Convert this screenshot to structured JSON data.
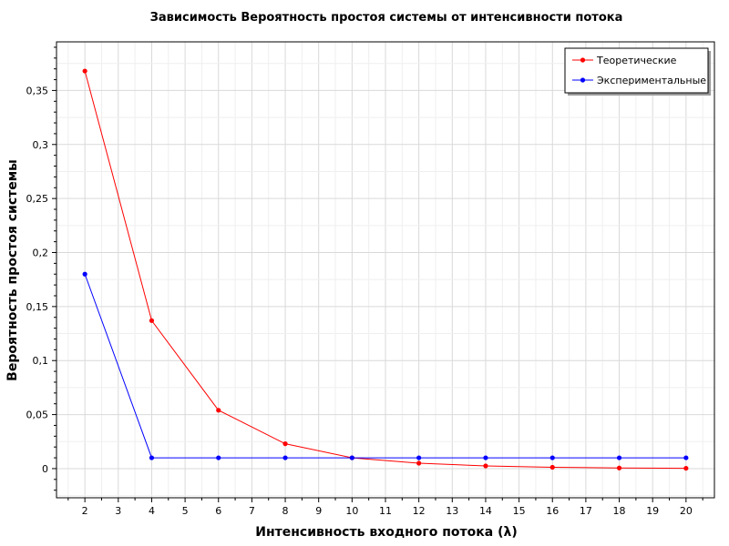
{
  "chart_data": {
    "type": "line",
    "title": "Зависимость Вероятность простоя системы от интенсивности потока",
    "xlabel": "Интенсивность входного потока (λ)",
    "ylabel": "Вероятность простоя системы",
    "xlim": [
      1.15,
      20.85
    ],
    "ylim": [
      -0.027,
      0.395
    ],
    "x_ticks": [
      2,
      3,
      4,
      5,
      6,
      7,
      8,
      9,
      10,
      11,
      12,
      13,
      14,
      15,
      16,
      17,
      18,
      19,
      20
    ],
    "x_tick_labels": [
      "2",
      "3",
      "4",
      "5",
      "6",
      "7",
      "8",
      "9",
      "10",
      "11",
      "12",
      "13",
      "14",
      "15",
      "16",
      "17",
      "18",
      "19",
      "20"
    ],
    "y_ticks": [
      0,
      0.05,
      0.1,
      0.15,
      0.2,
      0.25,
      0.3,
      0.35
    ],
    "y_tick_labels": [
      "0",
      "0,05",
      "0,1",
      "0,15",
      "0,2",
      "0,25",
      "0,3",
      "0,35"
    ],
    "grid": true,
    "legend_position": "top-right",
    "series": [
      {
        "name": "Теоретические",
        "color": "#ff0000",
        "x": [
          2,
          4,
          6,
          8,
          10,
          12,
          14,
          16,
          18,
          20
        ],
        "y": [
          0.368,
          0.137,
          0.054,
          0.023,
          0.01,
          0.005,
          0.0025,
          0.0012,
          0.0006,
          0.0003
        ]
      },
      {
        "name": "Экспериментальные",
        "color": "#0000ff",
        "x": [
          2,
          4,
          6,
          8,
          10,
          12,
          14,
          16,
          18,
          20
        ],
        "y": [
          0.18,
          0.01,
          0.01,
          0.01,
          0.01,
          0.01,
          0.01,
          0.01,
          0.01,
          0.01
        ]
      }
    ]
  }
}
